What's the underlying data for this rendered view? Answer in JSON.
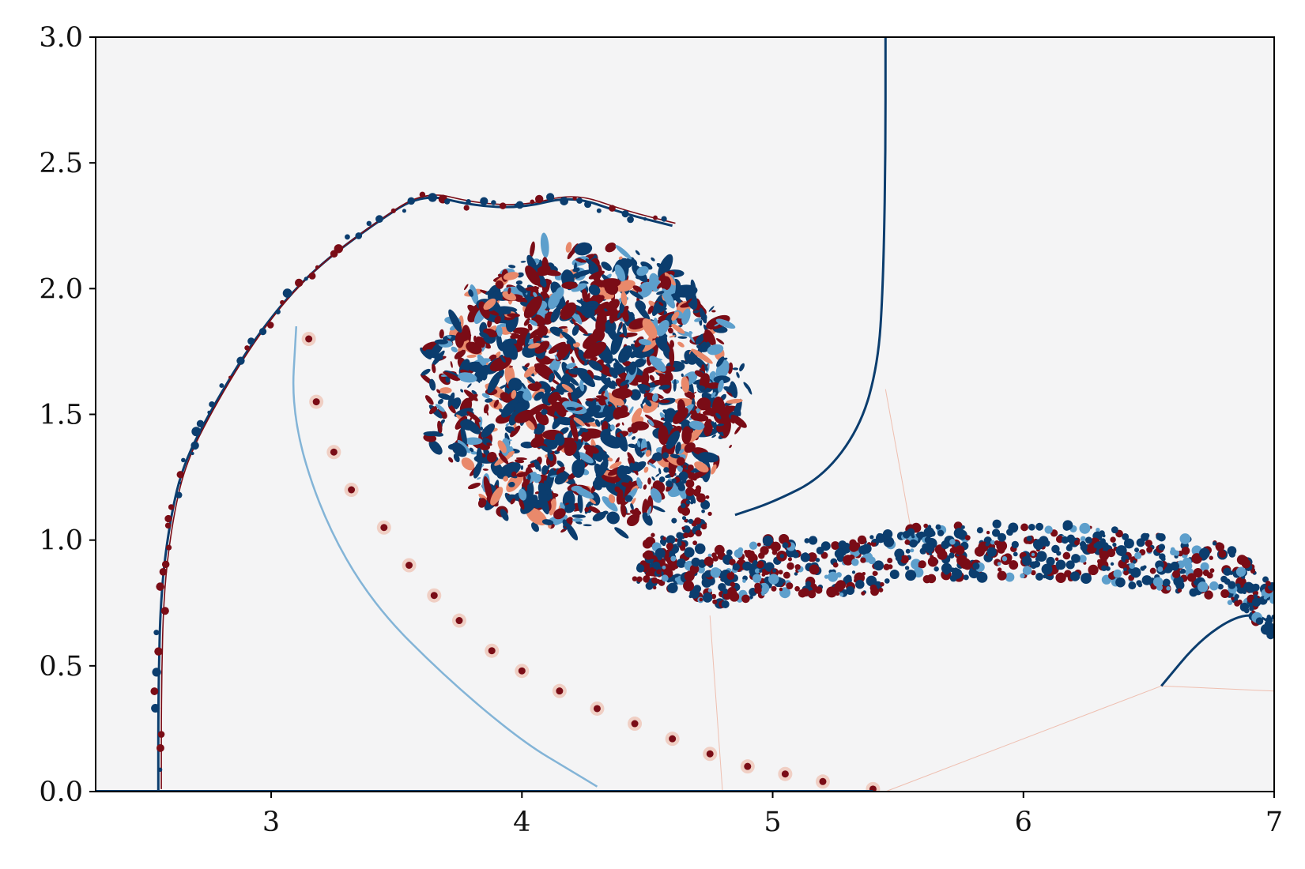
{
  "chart_data": {
    "type": "heatmap",
    "title": "",
    "xlabel": "",
    "ylabel": "",
    "xlim": [
      2.3,
      7.0
    ],
    "ylim": [
      0.0,
      3.0
    ],
    "x_ticks": [
      {
        "value": 3,
        "label": "3"
      },
      {
        "value": 4,
        "label": "4"
      },
      {
        "value": 5,
        "label": "5"
      },
      {
        "value": 6,
        "label": "6"
      },
      {
        "value": 7,
        "label": "7"
      }
    ],
    "y_ticks": [
      {
        "value": 0.0,
        "label": "0.0"
      },
      {
        "value": 0.5,
        "label": "0.5"
      },
      {
        "value": 1.0,
        "label": "1.0"
      },
      {
        "value": 1.5,
        "label": "1.5"
      },
      {
        "value": 2.0,
        "label": "2.0"
      },
      {
        "value": 2.5,
        "label": "2.5"
      },
      {
        "value": 3.0,
        "label": "3.0"
      }
    ],
    "grid": false,
    "colormap": "diverging red-white-blue",
    "colors": {
      "background": "#f4f4f5",
      "positive": "#7a0c16",
      "positive_light": "#e9896b",
      "negative": "#0b3d6e",
      "negative_light": "#5d9fcc",
      "neutral": "#f4f4f5"
    },
    "features": {
      "outer_vortex_sheet": [
        [
          2.55,
          0.0
        ],
        [
          2.55,
          0.4
        ],
        [
          2.56,
          0.8
        ],
        [
          2.6,
          1.1
        ],
        [
          2.65,
          1.3
        ],
        [
          2.75,
          1.5
        ],
        [
          2.9,
          1.75
        ],
        [
          3.05,
          1.95
        ],
        [
          3.2,
          2.1
        ],
        [
          3.4,
          2.25
        ],
        [
          3.6,
          2.38
        ],
        [
          3.8,
          2.33
        ],
        [
          4.0,
          2.32
        ],
        [
          4.2,
          2.37
        ],
        [
          4.4,
          2.3
        ],
        [
          4.6,
          2.25
        ]
      ],
      "inner_blue_shear_line": [
        [
          3.1,
          1.85
        ],
        [
          3.08,
          1.5
        ],
        [
          3.2,
          1.1
        ],
        [
          3.4,
          0.75
        ],
        [
          3.7,
          0.45
        ],
        [
          4.0,
          0.2
        ],
        [
          4.2,
          0.08
        ],
        [
          4.3,
          0.02
        ]
      ],
      "red_vortex_chain": [
        [
          3.15,
          1.8
        ],
        [
          3.18,
          1.55
        ],
        [
          3.25,
          1.35
        ],
        [
          3.32,
          1.2
        ],
        [
          3.45,
          1.05
        ],
        [
          3.55,
          0.9
        ],
        [
          3.65,
          0.78
        ],
        [
          3.75,
          0.68
        ],
        [
          3.88,
          0.56
        ],
        [
          4.0,
          0.48
        ],
        [
          4.15,
          0.4
        ],
        [
          4.3,
          0.33
        ],
        [
          4.45,
          0.27
        ],
        [
          4.6,
          0.21
        ],
        [
          4.75,
          0.15
        ],
        [
          4.9,
          0.1
        ],
        [
          5.05,
          0.07
        ],
        [
          5.2,
          0.04
        ],
        [
          5.4,
          0.01
        ]
      ],
      "central_turbulent_blob": {
        "center": [
          4.25,
          1.6
        ],
        "rx": 0.62,
        "ry": 0.55
      },
      "bottom_mixing_band": [
        [
          4.5,
          0.92
        ],
        [
          4.8,
          0.85
        ],
        [
          5.0,
          0.9
        ],
        [
          5.3,
          0.88
        ],
        [
          5.6,
          0.95
        ],
        [
          5.9,
          0.96
        ],
        [
          6.2,
          0.95
        ],
        [
          6.5,
          0.92
        ],
        [
          6.8,
          0.88
        ],
        [
          7.0,
          0.72
        ]
      ],
      "shock_upper": [
        [
          5.45,
          3.0
        ],
        [
          5.45,
          2.5
        ],
        [
          5.44,
          2.0
        ],
        [
          5.42,
          1.7
        ],
        [
          5.35,
          1.45
        ],
        [
          5.2,
          1.25
        ],
        [
          5.0,
          1.15
        ],
        [
          4.85,
          1.1
        ]
      ],
      "shock_lower_right": [
        [
          6.55,
          0.42
        ],
        [
          6.7,
          0.6
        ],
        [
          6.85,
          0.7
        ],
        [
          6.95,
          0.7
        ],
        [
          7.0,
          0.65
        ]
      ],
      "faint_lines": [
        [
          [
            5.45,
            1.6
          ],
          [
            5.55,
            1.05
          ]
        ],
        [
          [
            4.75,
            0.7
          ],
          [
            4.8,
            0.0
          ]
        ],
        [
          [
            5.45,
            0.0
          ],
          [
            6.55,
            0.42
          ]
        ],
        [
          [
            6.55,
            0.42
          ],
          [
            7.0,
            0.4
          ]
        ]
      ]
    }
  }
}
